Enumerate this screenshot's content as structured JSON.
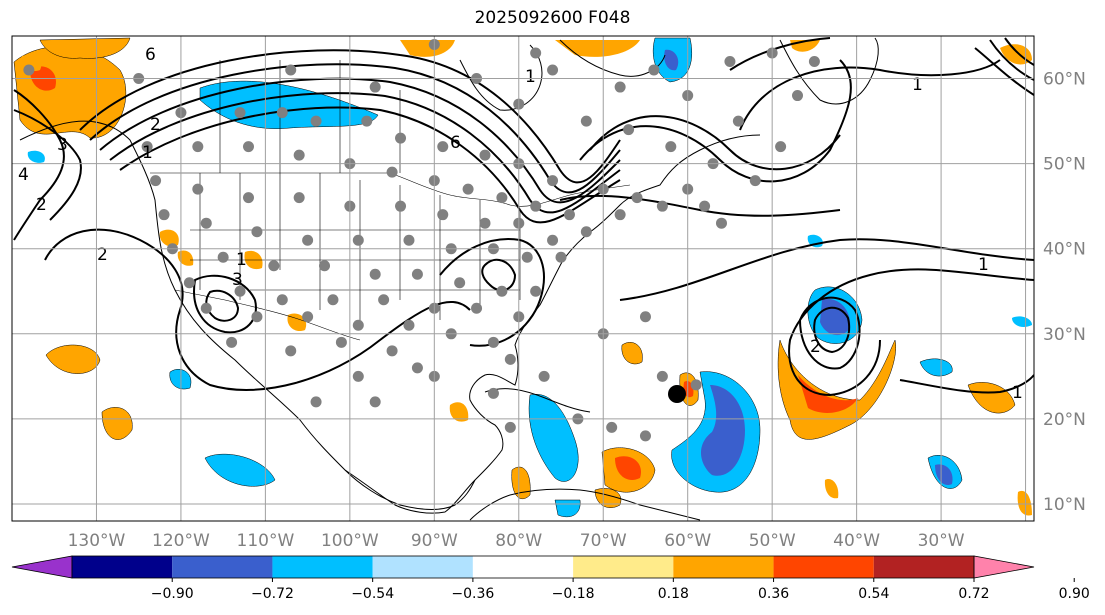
{
  "title": "2025092600 F048",
  "map": {
    "lon_range": [
      -140,
      -19
    ],
    "lat_range": [
      8,
      65
    ],
    "lon_grid": [
      -140,
      -130,
      -120,
      -110,
      -100,
      -90,
      -80,
      -70,
      -60,
      -50,
      -40,
      -30,
      -20
    ],
    "lat_grid": [
      10,
      20,
      30,
      40,
      50,
      60
    ],
    "lon_tick_labels": [
      "130°W",
      "120°W",
      "110°W",
      "100°W",
      "90°W",
      "80°W",
      "70°W",
      "60°W",
      "50°W",
      "40°W",
      "30°W"
    ],
    "lon_tick_values": [
      -130,
      -120,
      -110,
      -100,
      -90,
      -80,
      -70,
      -60,
      -50,
      -40,
      -30
    ],
    "lat_tick_labels": [
      "10°N",
      "20°N",
      "30°N",
      "40°N",
      "50°N",
      "60°N"
    ],
    "lat_tick_values": [
      10,
      20,
      30,
      40,
      50,
      60
    ],
    "grid_color": "#a0a0a0",
    "label_color": "#808080",
    "contour_labels": [
      "2",
      "3",
      "1",
      "6",
      "3",
      "2",
      "4",
      "2",
      "1",
      "6",
      "1",
      "1",
      "2",
      "1",
      "1"
    ],
    "station_color": "#808080",
    "marker_color": "#000000"
  },
  "colorbar": {
    "tick_labels": [
      "−0.90",
      "−0.72",
      "−0.54",
      "−0.36",
      "−0.18",
      "0.18",
      "0.36",
      "0.54",
      "0.72",
      "0.90"
    ],
    "colors": [
      "#9932cc",
      "#00008b",
      "#3a5fcd",
      "#00bfff",
      "#b0e2ff",
      "#ffffff",
      "#ffeb8a",
      "#ffa500",
      "#ff4500",
      "#b22222",
      "#ff82ab"
    ]
  }
}
